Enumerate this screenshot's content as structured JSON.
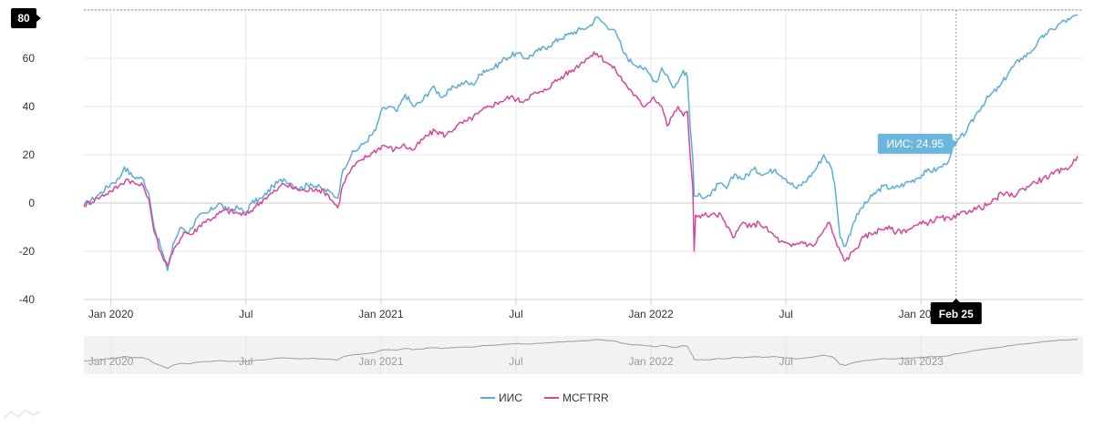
{
  "chart_data": {
    "type": "line",
    "title": "",
    "xlabel": "",
    "ylabel": "",
    "ylim": [
      -40,
      80
    ],
    "y_ticks": [
      -40,
      -20,
      0,
      20,
      40,
      60,
      80
    ],
    "x_range": [
      2019.9,
      2023.6
    ],
    "x_ticks": [
      {
        "x": 2020.0,
        "label": "Jan 2020"
      },
      {
        "x": 2020.5,
        "label": "Jul"
      },
      {
        "x": 2021.0,
        "label": "Jan 2021"
      },
      {
        "x": 2021.5,
        "label": "Jul"
      },
      {
        "x": 2022.0,
        "label": "Jan 2022"
      },
      {
        "x": 2022.5,
        "label": "Jul"
      },
      {
        "x": 2023.0,
        "label": "Jan 2023"
      }
    ],
    "nav_ticks": [
      {
        "x": 2020.0,
        "label": "Jan 2020"
      },
      {
        "x": 2020.5,
        "label": "Jul"
      },
      {
        "x": 2021.0,
        "label": "Jan 2021"
      },
      {
        "x": 2021.5,
        "label": "Jul"
      },
      {
        "x": 2022.0,
        "label": "Jan 2022"
      },
      {
        "x": 2022.5,
        "label": "Jul"
      },
      {
        "x": 2023.0,
        "label": "Jan 2023"
      }
    ],
    "series": [
      {
        "name": "ИИС",
        "color": "#5aaed6",
        "points": [
          [
            2019.9,
            -1
          ],
          [
            2019.95,
            3
          ],
          [
            2020.0,
            8
          ],
          [
            2020.03,
            10
          ],
          [
            2020.05,
            15
          ],
          [
            2020.08,
            11
          ],
          [
            2020.12,
            10
          ],
          [
            2020.14,
            4
          ],
          [
            2020.16,
            -10
          ],
          [
            2020.19,
            -20
          ],
          [
            2020.21,
            -28
          ],
          [
            2020.23,
            -17
          ],
          [
            2020.26,
            -10
          ],
          [
            2020.29,
            -12
          ],
          [
            2020.32,
            -6
          ],
          [
            2020.36,
            -4
          ],
          [
            2020.4,
            0
          ],
          [
            2020.43,
            -3
          ],
          [
            2020.47,
            -2
          ],
          [
            2020.5,
            -4
          ],
          [
            2020.52,
            0
          ],
          [
            2020.56,
            2
          ],
          [
            2020.6,
            7
          ],
          [
            2020.64,
            10
          ],
          [
            2020.67,
            8
          ],
          [
            2020.7,
            6
          ],
          [
            2020.74,
            8
          ],
          [
            2020.78,
            6
          ],
          [
            2020.82,
            4
          ],
          [
            2020.84,
            2
          ],
          [
            2020.86,
            14
          ],
          [
            2020.89,
            20
          ],
          [
            2020.94,
            25
          ],
          [
            2020.98,
            30
          ],
          [
            2021.0,
            38
          ],
          [
            2021.03,
            40
          ],
          [
            2021.06,
            38
          ],
          [
            2021.09,
            45
          ],
          [
            2021.12,
            40
          ],
          [
            2021.15,
            42
          ],
          [
            2021.19,
            48
          ],
          [
            2021.23,
            44
          ],
          [
            2021.27,
            48
          ],
          [
            2021.31,
            50
          ],
          [
            2021.34,
            49
          ],
          [
            2021.38,
            55
          ],
          [
            2021.42,
            56
          ],
          [
            2021.46,
            60
          ],
          [
            2021.5,
            62
          ],
          [
            2021.54,
            60
          ],
          [
            2021.58,
            63
          ],
          [
            2021.62,
            65
          ],
          [
            2021.66,
            68
          ],
          [
            2021.7,
            70
          ],
          [
            2021.74,
            72
          ],
          [
            2021.77,
            73
          ],
          [
            2021.8,
            77
          ],
          [
            2021.83,
            74
          ],
          [
            2021.86,
            72
          ],
          [
            2021.88,
            68
          ],
          [
            2021.9,
            62
          ],
          [
            2021.93,
            58
          ],
          [
            2021.96,
            57
          ],
          [
            2021.99,
            54
          ],
          [
            2022.02,
            50
          ],
          [
            2022.04,
            56
          ],
          [
            2022.06,
            53
          ],
          [
            2022.08,
            48
          ],
          [
            2022.1,
            50
          ],
          [
            2022.12,
            55
          ],
          [
            2022.135,
            52
          ],
          [
            2022.145,
            32
          ],
          [
            2022.155,
            18
          ],
          [
            2022.16,
            3
          ],
          [
            2022.22,
            3
          ],
          [
            2022.25,
            8
          ],
          [
            2022.28,
            6
          ],
          [
            2022.31,
            12
          ],
          [
            2022.34,
            10
          ],
          [
            2022.38,
            14
          ],
          [
            2022.42,
            12
          ],
          [
            2022.46,
            14
          ],
          [
            2022.5,
            10
          ],
          [
            2022.54,
            6
          ],
          [
            2022.58,
            10
          ],
          [
            2022.61,
            14
          ],
          [
            2022.64,
            20
          ],
          [
            2022.67,
            14
          ],
          [
            2022.68,
            8
          ],
          [
            2022.7,
            -14
          ],
          [
            2022.72,
            -18
          ],
          [
            2022.75,
            -8
          ],
          [
            2022.78,
            -2
          ],
          [
            2022.82,
            3
          ],
          [
            2022.86,
            7
          ],
          [
            2022.9,
            6
          ],
          [
            2022.94,
            8
          ],
          [
            2022.98,
            10
          ],
          [
            2023.02,
            13
          ],
          [
            2023.06,
            14
          ],
          [
            2023.09,
            16
          ],
          [
            2023.11,
            20
          ],
          [
            2023.13,
            24.95
          ],
          [
            2023.17,
            30
          ],
          [
            2023.21,
            38
          ],
          [
            2023.25,
            44
          ],
          [
            2023.29,
            48
          ],
          [
            2023.33,
            55
          ],
          [
            2023.37,
            60
          ],
          [
            2023.4,
            62
          ],
          [
            2023.43,
            66
          ],
          [
            2023.46,
            70
          ],
          [
            2023.49,
            72
          ],
          [
            2023.52,
            75
          ],
          [
            2023.55,
            76
          ],
          [
            2023.58,
            78
          ]
        ]
      },
      {
        "name": "MCFTRR",
        "color": "#d4479d",
        "points": [
          [
            2019.9,
            -1
          ],
          [
            2019.95,
            2
          ],
          [
            2020.0,
            5
          ],
          [
            2020.03,
            7
          ],
          [
            2020.06,
            10
          ],
          [
            2020.09,
            8
          ],
          [
            2020.12,
            7
          ],
          [
            2020.14,
            2
          ],
          [
            2020.16,
            -12
          ],
          [
            2020.19,
            -22
          ],
          [
            2020.21,
            -26
          ],
          [
            2020.24,
            -18
          ],
          [
            2020.27,
            -12
          ],
          [
            2020.3,
            -13
          ],
          [
            2020.34,
            -8
          ],
          [
            2020.38,
            -6
          ],
          [
            2020.42,
            -3
          ],
          [
            2020.46,
            -4
          ],
          [
            2020.5,
            -5
          ],
          [
            2020.53,
            -2
          ],
          [
            2020.57,
            2
          ],
          [
            2020.61,
            5
          ],
          [
            2020.64,
            8
          ],
          [
            2020.68,
            6
          ],
          [
            2020.72,
            5
          ],
          [
            2020.76,
            6
          ],
          [
            2020.8,
            4
          ],
          [
            2020.84,
            -2
          ],
          [
            2020.86,
            8
          ],
          [
            2020.89,
            14
          ],
          [
            2020.93,
            18
          ],
          [
            2020.97,
            21
          ],
          [
            2021.01,
            24
          ],
          [
            2021.05,
            22
          ],
          [
            2021.08,
            24
          ],
          [
            2021.12,
            22
          ],
          [
            2021.16,
            27
          ],
          [
            2021.2,
            30
          ],
          [
            2021.24,
            28
          ],
          [
            2021.28,
            32
          ],
          [
            2021.32,
            34
          ],
          [
            2021.36,
            37
          ],
          [
            2021.4,
            40
          ],
          [
            2021.44,
            42
          ],
          [
            2021.48,
            44
          ],
          [
            2021.52,
            42
          ],
          [
            2021.56,
            45
          ],
          [
            2021.6,
            46
          ],
          [
            2021.64,
            50
          ],
          [
            2021.68,
            53
          ],
          [
            2021.72,
            56
          ],
          [
            2021.76,
            60
          ],
          [
            2021.8,
            62
          ],
          [
            2021.84,
            58
          ],
          [
            2021.87,
            55
          ],
          [
            2021.9,
            50
          ],
          [
            2021.93,
            46
          ],
          [
            2021.97,
            40
          ],
          [
            2022.01,
            44
          ],
          [
            2022.04,
            40
          ],
          [
            2022.06,
            32
          ],
          [
            2022.08,
            36
          ],
          [
            2022.1,
            40
          ],
          [
            2022.12,
            36
          ],
          [
            2022.135,
            38
          ],
          [
            2022.145,
            20
          ],
          [
            2022.155,
            6
          ],
          [
            2022.16,
            -20
          ],
          [
            2022.165,
            -5
          ],
          [
            2022.22,
            -5
          ],
          [
            2022.24,
            -5
          ],
          [
            2022.26,
            -5
          ],
          [
            2022.28,
            -10
          ],
          [
            2022.31,
            -14
          ],
          [
            2022.34,
            -8
          ],
          [
            2022.37,
            -10
          ],
          [
            2022.4,
            -8
          ],
          [
            2022.44,
            -12
          ],
          [
            2022.48,
            -16
          ],
          [
            2022.52,
            -18
          ],
          [
            2022.56,
            -16
          ],
          [
            2022.6,
            -18
          ],
          [
            2022.63,
            -13
          ],
          [
            2022.66,
            -8
          ],
          [
            2022.69,
            -18
          ],
          [
            2022.72,
            -24
          ],
          [
            2022.75,
            -20
          ],
          [
            2022.79,
            -14
          ],
          [
            2022.83,
            -12
          ],
          [
            2022.87,
            -10
          ],
          [
            2022.91,
            -12
          ],
          [
            2022.95,
            -11
          ],
          [
            2022.99,
            -9
          ],
          [
            2023.03,
            -8
          ],
          [
            2023.07,
            -6
          ],
          [
            2023.11,
            -7
          ],
          [
            2023.14,
            -5
          ],
          [
            2023.18,
            -3
          ],
          [
            2023.22,
            -2
          ],
          [
            2023.26,
            0
          ],
          [
            2023.3,
            4
          ],
          [
            2023.34,
            3
          ],
          [
            2023.38,
            6
          ],
          [
            2023.41,
            8
          ],
          [
            2023.45,
            10
          ],
          [
            2023.49,
            12
          ],
          [
            2023.53,
            14
          ],
          [
            2023.56,
            16
          ],
          [
            2023.58,
            19.5
          ]
        ]
      }
    ],
    "tooltip": {
      "series": "ИИС",
      "x": 2023.13,
      "y": 24.95,
      "label": "ИИС: 24.95"
    },
    "crosshair": {
      "x": 2023.13,
      "label": "Feb 25"
    },
    "y_highlight": {
      "y": 80,
      "label": "80"
    }
  }
}
